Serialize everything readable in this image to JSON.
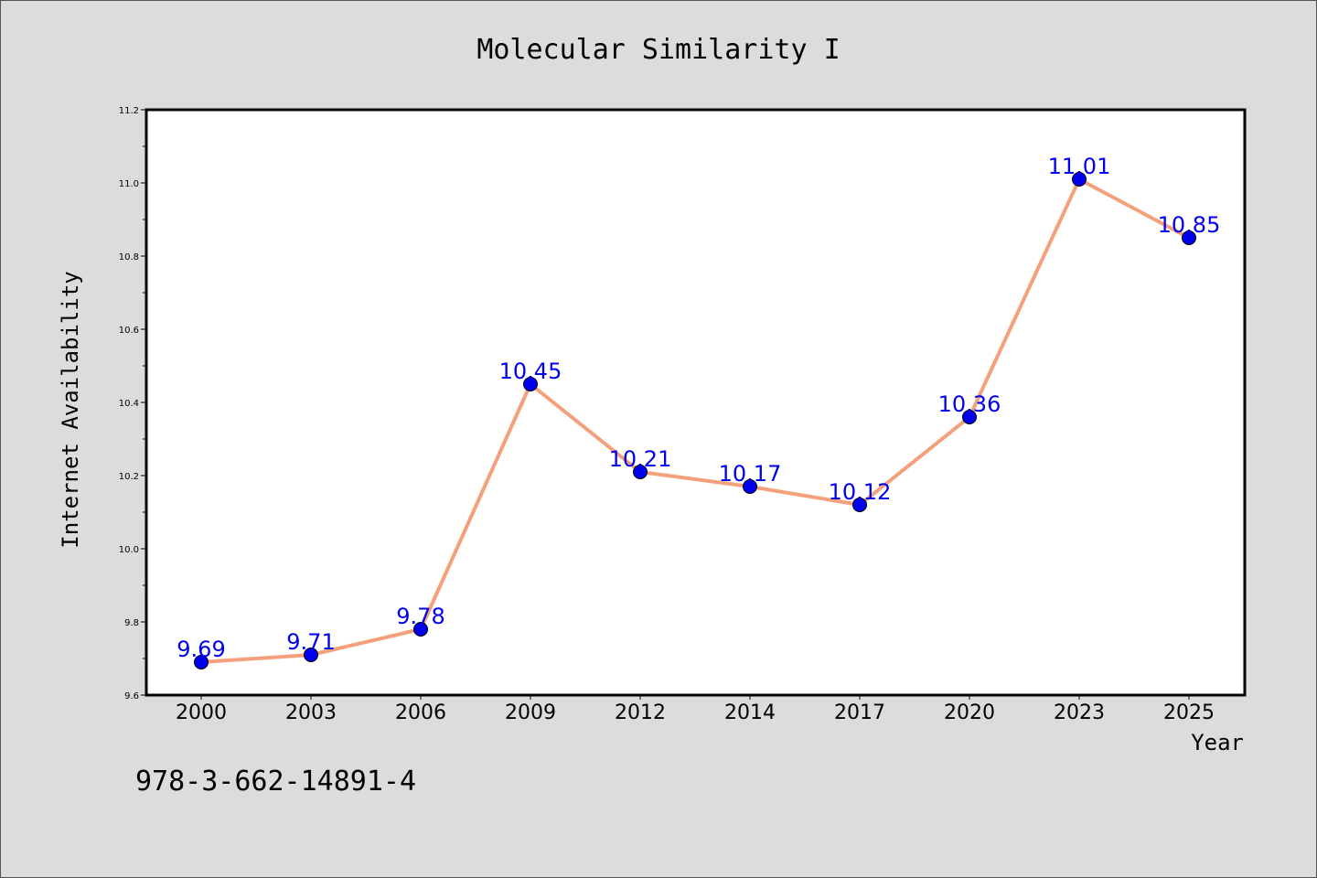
{
  "chart_data": {
    "type": "line",
    "title": "Molecular Similarity I",
    "xlabel": "Year",
    "ylabel": "Internet Availability",
    "categories": [
      "2000",
      "2003",
      "2006",
      "2009",
      "2012",
      "2014",
      "2017",
      "2020",
      "2023",
      "2025"
    ],
    "series": [
      {
        "values": [
          9.69,
          9.71,
          9.78,
          10.45,
          10.21,
          10.17,
          10.12,
          10.36,
          11.01,
          10.85
        ],
        "data_labels": [
          "9.69",
          "9.71",
          "9.78",
          "10.45",
          "10.21",
          "10.17",
          "10.12",
          "10.36",
          "11.01",
          "10.85"
        ],
        "line_color": "#f4a07c",
        "marker_color": "#0000ee",
        "label_color": "#0000ee"
      }
    ],
    "ylim": [
      9.6,
      11.2
    ],
    "yticks": [
      "9.6",
      "9.8",
      "10.0",
      "10.2",
      "10.4",
      "10.6",
      "10.8",
      "11.0",
      "11.2"
    ],
    "grid": false,
    "legend": "none"
  },
  "footer": {
    "isbn": "978-3-662-14891-4"
  },
  "colors": {
    "background": "#dcdcdc",
    "plot_background": "#ffffff"
  }
}
